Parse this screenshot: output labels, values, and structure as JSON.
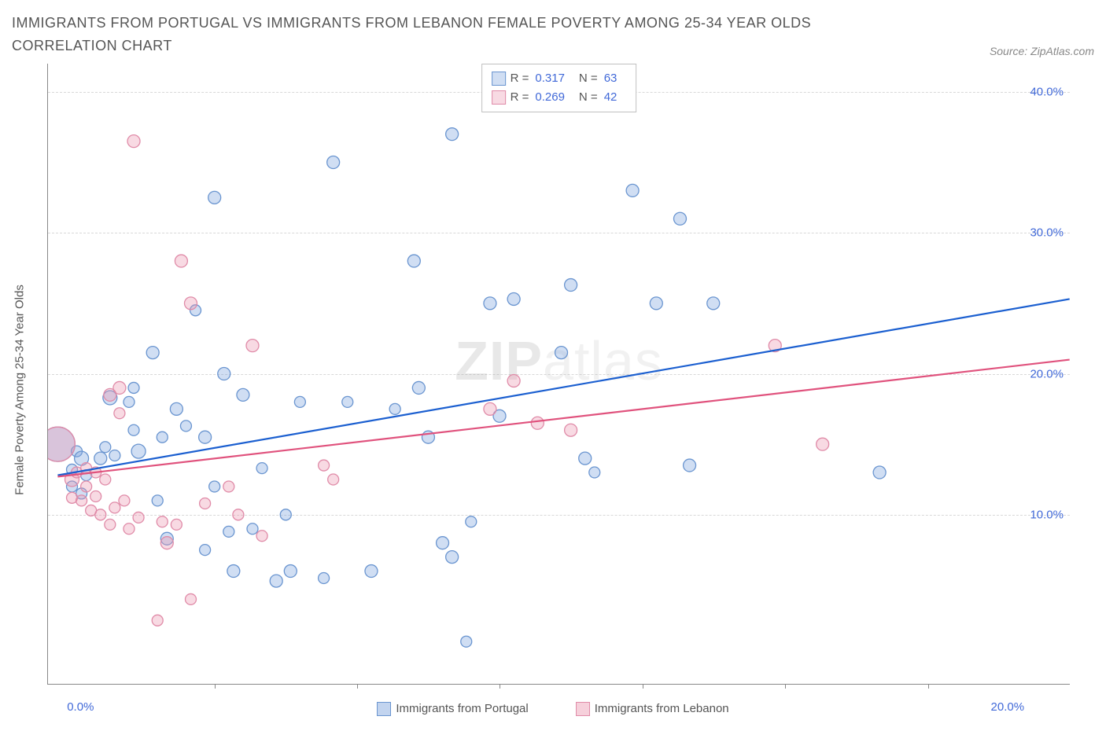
{
  "title": "IMMIGRANTS FROM PORTUGAL VS IMMIGRANTS FROM LEBANON FEMALE POVERTY AMONG 25-34 YEAR OLDS CORRELATION CHART",
  "source": "Source: ZipAtlas.com",
  "y_axis_label": "Female Poverty Among 25-34 Year Olds",
  "watermark_bold": "ZIP",
  "watermark_light": "atlas",
  "chart": {
    "type": "scatter",
    "background_color": "#ffffff",
    "axis_color": "#888888",
    "grid_color": "#d8d8d8",
    "text_color": "#555555",
    "tick_label_color": "#4169d8",
    "x_range": [
      -0.5,
      21.0
    ],
    "y_range": [
      -2.0,
      42.0
    ],
    "y_ticks": [
      10.0,
      20.0,
      30.0,
      40.0
    ],
    "y_tick_labels": [
      "10.0%",
      "20.0%",
      "30.0%",
      "40.0%"
    ],
    "x_minor_ticks": [
      3,
      6,
      9,
      12,
      15,
      18
    ],
    "x_labels": [
      {
        "value": 0.0,
        "label": "0.0%"
      },
      {
        "value": 20.0,
        "label": "20.0%"
      }
    ],
    "series": [
      {
        "name": "Immigrants from Portugal",
        "fill_color": "rgba(120,160,220,0.35)",
        "stroke_color": "#6a95d0",
        "trend_color": "#1b5fd0",
        "R": "0.317",
        "N": "63",
        "trend_line": {
          "x1": -0.3,
          "y1": 12.8,
          "x2": 21.0,
          "y2": 25.3
        },
        "points": [
          {
            "x": -0.3,
            "y": 15.0,
            "r": 22
          },
          {
            "x": 0.0,
            "y": 12.0,
            "r": 7
          },
          {
            "x": 0.0,
            "y": 13.2,
            "r": 7
          },
          {
            "x": 0.1,
            "y": 14.5,
            "r": 7
          },
          {
            "x": 0.2,
            "y": 11.5,
            "r": 7
          },
          {
            "x": 0.3,
            "y": 12.8,
            "r": 7
          },
          {
            "x": 0.2,
            "y": 14.0,
            "r": 9
          },
          {
            "x": 0.6,
            "y": 14.0,
            "r": 8
          },
          {
            "x": 0.7,
            "y": 14.8,
            "r": 7
          },
          {
            "x": 0.8,
            "y": 18.3,
            "r": 9
          },
          {
            "x": 0.9,
            "y": 14.2,
            "r": 7
          },
          {
            "x": 1.2,
            "y": 18.0,
            "r": 7
          },
          {
            "x": 1.3,
            "y": 16.0,
            "r": 7
          },
          {
            "x": 1.3,
            "y": 19.0,
            "r": 7
          },
          {
            "x": 1.4,
            "y": 14.5,
            "r": 9
          },
          {
            "x": 1.7,
            "y": 21.5,
            "r": 8
          },
          {
            "x": 1.8,
            "y": 11.0,
            "r": 7
          },
          {
            "x": 1.9,
            "y": 15.5,
            "r": 7
          },
          {
            "x": 2.0,
            "y": 8.3,
            "r": 8
          },
          {
            "x": 2.2,
            "y": 17.5,
            "r": 8
          },
          {
            "x": 2.4,
            "y": 16.3,
            "r": 7
          },
          {
            "x": 2.6,
            "y": 24.5,
            "r": 7
          },
          {
            "x": 2.8,
            "y": 15.5,
            "r": 8
          },
          {
            "x": 2.8,
            "y": 7.5,
            "r": 7
          },
          {
            "x": 3.0,
            "y": 12.0,
            "r": 7
          },
          {
            "x": 3.0,
            "y": 32.5,
            "r": 8
          },
          {
            "x": 3.2,
            "y": 20.0,
            "r": 8
          },
          {
            "x": 3.3,
            "y": 8.8,
            "r": 7
          },
          {
            "x": 3.4,
            "y": 6.0,
            "r": 8
          },
          {
            "x": 3.6,
            "y": 18.5,
            "r": 8
          },
          {
            "x": 3.8,
            "y": 9.0,
            "r": 7
          },
          {
            "x": 4.0,
            "y": 13.3,
            "r": 7
          },
          {
            "x": 4.3,
            "y": 5.3,
            "r": 8
          },
          {
            "x": 4.5,
            "y": 10.0,
            "r": 7
          },
          {
            "x": 4.6,
            "y": 6.0,
            "r": 8
          },
          {
            "x": 4.8,
            "y": 18.0,
            "r": 7
          },
          {
            "x": 5.3,
            "y": 5.5,
            "r": 7
          },
          {
            "x": 5.5,
            "y": 35.0,
            "r": 8
          },
          {
            "x": 5.8,
            "y": 18.0,
            "r": 7
          },
          {
            "x": 6.3,
            "y": 6.0,
            "r": 8
          },
          {
            "x": 6.8,
            "y": 17.5,
            "r": 7
          },
          {
            "x": 7.2,
            "y": 28.0,
            "r": 8
          },
          {
            "x": 7.3,
            "y": 19.0,
            "r": 8
          },
          {
            "x": 7.5,
            "y": 15.5,
            "r": 8
          },
          {
            "x": 7.8,
            "y": 8.0,
            "r": 8
          },
          {
            "x": 8.0,
            "y": 37.0,
            "r": 8
          },
          {
            "x": 8.0,
            "y": 7.0,
            "r": 8
          },
          {
            "x": 8.3,
            "y": 1.0,
            "r": 7
          },
          {
            "x": 8.4,
            "y": 9.5,
            "r": 7
          },
          {
            "x": 8.8,
            "y": 25.0,
            "r": 8
          },
          {
            "x": 9.0,
            "y": 17.0,
            "r": 8
          },
          {
            "x": 9.3,
            "y": 25.3,
            "r": 8
          },
          {
            "x": 10.3,
            "y": 21.5,
            "r": 8
          },
          {
            "x": 10.5,
            "y": 26.3,
            "r": 8
          },
          {
            "x": 10.8,
            "y": 14.0,
            "r": 8
          },
          {
            "x": 11.0,
            "y": 13.0,
            "r": 7
          },
          {
            "x": 11.8,
            "y": 33.0,
            "r": 8
          },
          {
            "x": 12.3,
            "y": 25.0,
            "r": 8
          },
          {
            "x": 12.8,
            "y": 31.0,
            "r": 8
          },
          {
            "x": 13.0,
            "y": 13.5,
            "r": 8
          },
          {
            "x": 13.5,
            "y": 25.0,
            "r": 8
          },
          {
            "x": 17.0,
            "y": 13.0,
            "r": 8
          }
        ]
      },
      {
        "name": "Immigrants from Lebanon",
        "fill_color": "rgba(235,150,175,0.35)",
        "stroke_color": "#e08ba8",
        "trend_color": "#e0527d",
        "R": "0.269",
        "N": "42",
        "trend_line": {
          "x1": -0.3,
          "y1": 12.7,
          "x2": 21.0,
          "y2": 21.0
        },
        "points": [
          {
            "x": -0.3,
            "y": 15.0,
            "r": 22
          },
          {
            "x": 0.0,
            "y": 11.2,
            "r": 7
          },
          {
            "x": 0.0,
            "y": 12.5,
            "r": 9
          },
          {
            "x": 0.1,
            "y": 13.0,
            "r": 7
          },
          {
            "x": 0.2,
            "y": 11.0,
            "r": 7
          },
          {
            "x": 0.3,
            "y": 12.0,
            "r": 7
          },
          {
            "x": 0.3,
            "y": 13.3,
            "r": 7
          },
          {
            "x": 0.4,
            "y": 10.3,
            "r": 7
          },
          {
            "x": 0.5,
            "y": 11.3,
            "r": 7
          },
          {
            "x": 0.5,
            "y": 13.0,
            "r": 7
          },
          {
            "x": 0.6,
            "y": 10.0,
            "r": 7
          },
          {
            "x": 0.7,
            "y": 12.5,
            "r": 7
          },
          {
            "x": 0.8,
            "y": 9.3,
            "r": 7
          },
          {
            "x": 0.8,
            "y": 18.5,
            "r": 8
          },
          {
            "x": 0.9,
            "y": 10.5,
            "r": 7
          },
          {
            "x": 1.0,
            "y": 19.0,
            "r": 8
          },
          {
            "x": 1.0,
            "y": 17.2,
            "r": 7
          },
          {
            "x": 1.1,
            "y": 11.0,
            "r": 7
          },
          {
            "x": 1.2,
            "y": 9.0,
            "r": 7
          },
          {
            "x": 1.3,
            "y": 36.5,
            "r": 8
          },
          {
            "x": 1.4,
            "y": 9.8,
            "r": 7
          },
          {
            "x": 1.8,
            "y": 2.5,
            "r": 7
          },
          {
            "x": 1.9,
            "y": 9.5,
            "r": 7
          },
          {
            "x": 2.0,
            "y": 8.0,
            "r": 8
          },
          {
            "x": 2.2,
            "y": 9.3,
            "r": 7
          },
          {
            "x": 2.3,
            "y": 28.0,
            "r": 8
          },
          {
            "x": 2.5,
            "y": 25.0,
            "r": 8
          },
          {
            "x": 2.5,
            "y": 4.0,
            "r": 7
          },
          {
            "x": 2.8,
            "y": 10.8,
            "r": 7
          },
          {
            "x": 3.3,
            "y": 12.0,
            "r": 7
          },
          {
            "x": 3.5,
            "y": 10.0,
            "r": 7
          },
          {
            "x": 3.8,
            "y": 22.0,
            "r": 8
          },
          {
            "x": 4.0,
            "y": 8.5,
            "r": 7
          },
          {
            "x": 5.3,
            "y": 13.5,
            "r": 7
          },
          {
            "x": 5.5,
            "y": 12.5,
            "r": 7
          },
          {
            "x": 8.8,
            "y": 17.5,
            "r": 8
          },
          {
            "x": 9.3,
            "y": 19.5,
            "r": 8
          },
          {
            "x": 9.8,
            "y": 16.5,
            "r": 8
          },
          {
            "x": 10.5,
            "y": 16.0,
            "r": 8
          },
          {
            "x": 14.8,
            "y": 22.0,
            "r": 8
          },
          {
            "x": 15.8,
            "y": 15.0,
            "r": 8
          }
        ]
      }
    ]
  },
  "legend_bottom": [
    {
      "label": "Immigrants from Portugal",
      "fill": "rgba(120,160,220,0.45)",
      "border": "#6a95d0"
    },
    {
      "label": "Immigrants from Lebanon",
      "fill": "rgba(235,150,175,0.45)",
      "border": "#e08ba8"
    }
  ]
}
